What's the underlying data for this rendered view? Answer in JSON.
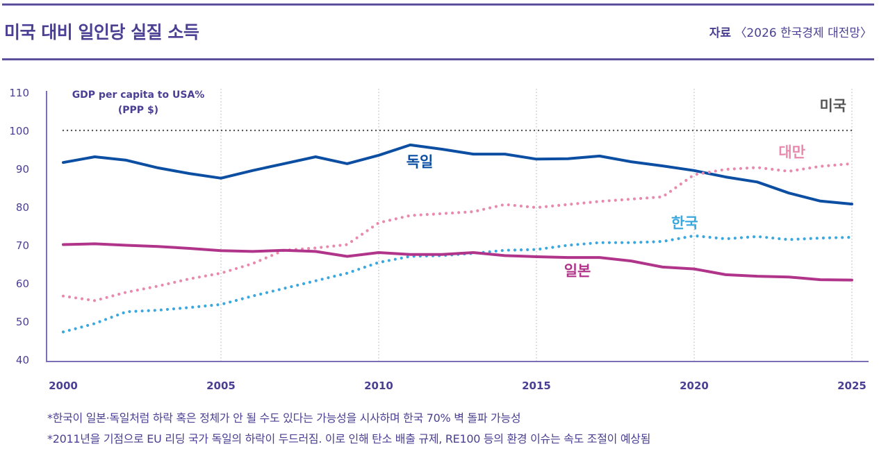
{
  "header": {
    "title": "미국 대비 일인당 실질 소득",
    "source_label": "자료",
    "source_text": "〈2026 한국경제 대전망〉"
  },
  "colors": {
    "accent": "#4a3f93",
    "axis": "#7b70b5",
    "grid": "#bdbdbd",
    "usa": "#555555",
    "germany": "#0b4ea2",
    "japan": "#b0348a",
    "taiwan": "#e889ad",
    "korea": "#3aa7df"
  },
  "chart_data": {
    "type": "line",
    "title": "미국 대비 일인당 실질 소득",
    "ylabel": "GDP per capita to USA% (PPP $)",
    "ylabel_lines": [
      "GDP per capita to USA%",
      "(PPP $)"
    ],
    "xlabel": "",
    "xlim": [
      2000,
      2025
    ],
    "ylim": [
      40,
      110
    ],
    "yticks": [
      40,
      50,
      60,
      70,
      80,
      90,
      100,
      110
    ],
    "xticks": [
      2000,
      2005,
      2010,
      2015,
      2020,
      2025
    ],
    "grid": "vertical dotted at 2005, 2010, 2015, 2020, 2025",
    "legend": "inline labels",
    "x": [
      2000,
      2001,
      2002,
      2003,
      2004,
      2005,
      2006,
      2007,
      2008,
      2009,
      2010,
      2011,
      2012,
      2013,
      2014,
      2015,
      2016,
      2017,
      2018,
      2019,
      2020,
      2021,
      2022,
      2023,
      2024,
      2025
    ],
    "series": [
      {
        "key": "usa",
        "name": "미국",
        "style": "dotted",
        "values": [
          100,
          100,
          100,
          100,
          100,
          100,
          100,
          100,
          100,
          100,
          100,
          100,
          100,
          100,
          100,
          100,
          100,
          100,
          100,
          100,
          100,
          100,
          100,
          100,
          100,
          100
        ]
      },
      {
        "key": "germany",
        "name": "독일",
        "style": "solid",
        "values": [
          91.6,
          93.1,
          92.2,
          90.2,
          88.7,
          87.5,
          89.5,
          91.3,
          93.1,
          91.3,
          93.5,
          96.2,
          95.1,
          93.8,
          93.8,
          92.5,
          92.6,
          93.3,
          91.8,
          90.7,
          89.5,
          87.8,
          86.5,
          83.6,
          81.5,
          80.7
        ]
      },
      {
        "key": "taiwan",
        "name": "대만",
        "style": "dotted",
        "values": [
          56.6,
          55.4,
          57.6,
          59.2,
          61.1,
          62.6,
          65.1,
          68.6,
          69.2,
          70.1,
          75.8,
          77.7,
          78.2,
          78.7,
          80.6,
          79.8,
          80.6,
          81.4,
          82.0,
          82.6,
          88.4,
          89.8,
          90.3,
          89.3,
          90.6,
          91.3
        ]
      },
      {
        "key": "korea",
        "name": "한국",
        "style": "dotted",
        "values": [
          47.2,
          49.4,
          52.5,
          52.9,
          53.6,
          54.4,
          56.6,
          58.6,
          60.6,
          62.6,
          65.4,
          67.0,
          67.2,
          67.8,
          68.6,
          68.8,
          69.9,
          70.6,
          70.6,
          70.9,
          72.4,
          71.6,
          72.2,
          71.4,
          71.8,
          72.0
        ]
      },
      {
        "key": "japan",
        "name": "일본",
        "style": "solid",
        "values": [
          70.1,
          70.3,
          69.9,
          69.6,
          69.1,
          68.5,
          68.3,
          68.6,
          68.3,
          67.0,
          68.0,
          67.5,
          67.5,
          68.0,
          67.2,
          66.9,
          66.7,
          66.7,
          65.8,
          64.2,
          63.7,
          62.2,
          61.8,
          61.6,
          60.9,
          60.8
        ]
      }
    ],
    "labels": [
      {
        "key": "usa",
        "text": "미국",
        "x": 2024.4,
        "y": 105.2
      },
      {
        "key": "germany",
        "text": "독일",
        "x": 2011.3,
        "y": 90.5
      },
      {
        "key": "taiwan",
        "text": "대만",
        "x": 2023.1,
        "y": 93.0
      },
      {
        "key": "korea",
        "text": "한국",
        "x": 2019.7,
        "y": 74.5
      },
      {
        "key": "japan",
        "text": "일본",
        "x": 2016.3,
        "y": 61.9
      }
    ]
  },
  "notes": [
    "*한국이 일본·독일처럼 하락 혹은 정체가 안 될 수도 있다는 가능성을 시사하며 한국 70% 벽 돌파 가능성",
    "*2011년을 기점으로 EU 리딩 국가 독일의 하락이 두드러짐. 이로 인해 탄소 배출 규제, RE100 등의 환경 이슈는 속도 조절이 예상됨"
  ]
}
